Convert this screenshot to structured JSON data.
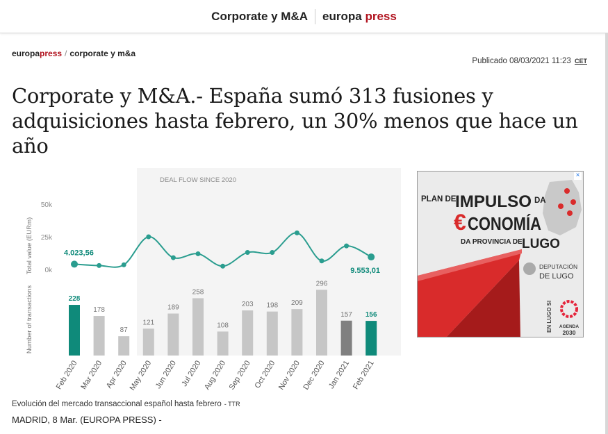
{
  "topbar": {
    "section": "Corporate y M&A",
    "brand_a": "europa",
    "brand_b": "press"
  },
  "breadcrumb": {
    "brand_a": "europa",
    "brand_b": "press",
    "sep": "/",
    "section": "corporate y m&a"
  },
  "published": {
    "label": "Publicado 08/03/2021 11:23",
    "tz": "CET"
  },
  "headline": "Corporate y M&A.- España sumó 313 fusiones y adquisiciones hasta febrero, un 30% menos que hace un año",
  "chart_data": {
    "type": "line",
    "title": "DEAL FLOW SINCE 2020",
    "categories": [
      "Feb 2020",
      "Mar 2020",
      "Apr 2020",
      "May 2020",
      "Jun 2020",
      "Jul 2020",
      "Aug 2020",
      "Sep 2020",
      "Oct 2020",
      "Nov 2020",
      "Dec 2020",
      "Jan 2021",
      "Feb 2021"
    ],
    "series": [
      {
        "values": [
          4023.56,
          3000,
          3500,
          25000,
          9000,
          12000,
          2500,
          13000,
          13000,
          28000,
          6500,
          18000,
          9553.01
        ]
      },
      {
        "values": [
          228,
          178,
          87,
          121,
          189,
          258,
          108,
          203,
          198,
          209,
          296,
          157,
          156
        ]
      }
    ],
    "top_ylabel": "Total value (EURm)",
    "top_yticks": [
      "50k",
      "25k",
      "0k"
    ],
    "top_ylim": [
      0,
      50000
    ],
    "bottom_ylabel": "Number of transactions",
    "line_labels": {
      "first": "4.023,56",
      "last": "9.553,01"
    },
    "highlight_colors": {
      "first": "#0f8a7a",
      "penultimate": "#808080",
      "last": "#0f8a7a",
      "default": "#c6c6c6",
      "line": "#2a9d8f"
    }
  },
  "ad": {
    "line1a": "PLAN DE",
    "line1b": "IMPULSO",
    "line1c": "DA",
    "line2a": "€",
    "line2b": "CONOMÍA",
    "line3a": "DA PROVINCIA DE",
    "line3b": "LUGO",
    "dep1": "DEPUTACIÓN",
    "dep2": "DE LUGO",
    "side": "EN LUGO SI",
    "agenda1": "AGENDA",
    "agenda2": "2030",
    "close": "×"
  },
  "caption": {
    "text": "Evolución del mercado transaccional español hasta febrero",
    "credit": "- TTR"
  },
  "dateline": "MADRID, 8 Mar. (EUROPA PRESS) -"
}
